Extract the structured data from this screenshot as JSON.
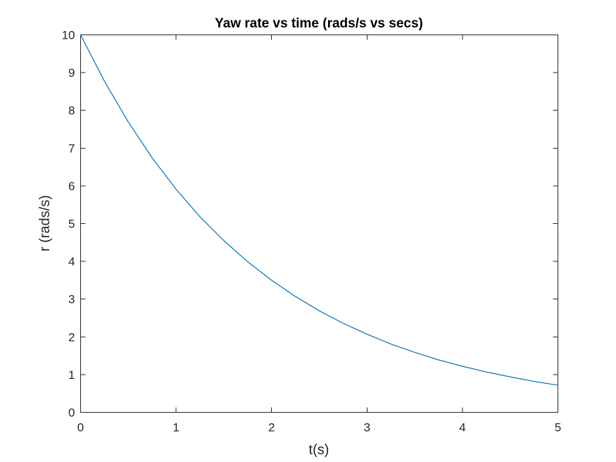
{
  "chart_data": {
    "type": "line",
    "title": "Yaw rate vs time (rads/s vs secs)",
    "xlabel": "t(s)",
    "ylabel": "r (rads/s)",
    "xlim": [
      0,
      5
    ],
    "ylim": [
      0,
      10
    ],
    "xticks": [
      "0",
      "1",
      "2",
      "3",
      "4",
      "5"
    ],
    "yticks": [
      "0",
      "1",
      "2",
      "3",
      "4",
      "5",
      "6",
      "7",
      "8",
      "9",
      "10"
    ],
    "grid": false,
    "series": [
      {
        "color": "#0072bd",
        "x": [
          0,
          0.25,
          0.5,
          0.75,
          1.0,
          1.25,
          1.5,
          1.75,
          2.0,
          2.25,
          2.5,
          2.75,
          3.0,
          3.25,
          3.5,
          3.75,
          4.0,
          4.25,
          4.5,
          4.75,
          5.0
        ],
        "y": [
          10.0,
          8.77,
          7.69,
          6.74,
          5.91,
          5.18,
          4.55,
          3.99,
          3.5,
          3.07,
          2.69,
          2.36,
          2.07,
          1.81,
          1.59,
          1.39,
          1.22,
          1.07,
          0.94,
          0.82,
          0.72
        ]
      }
    ]
  }
}
